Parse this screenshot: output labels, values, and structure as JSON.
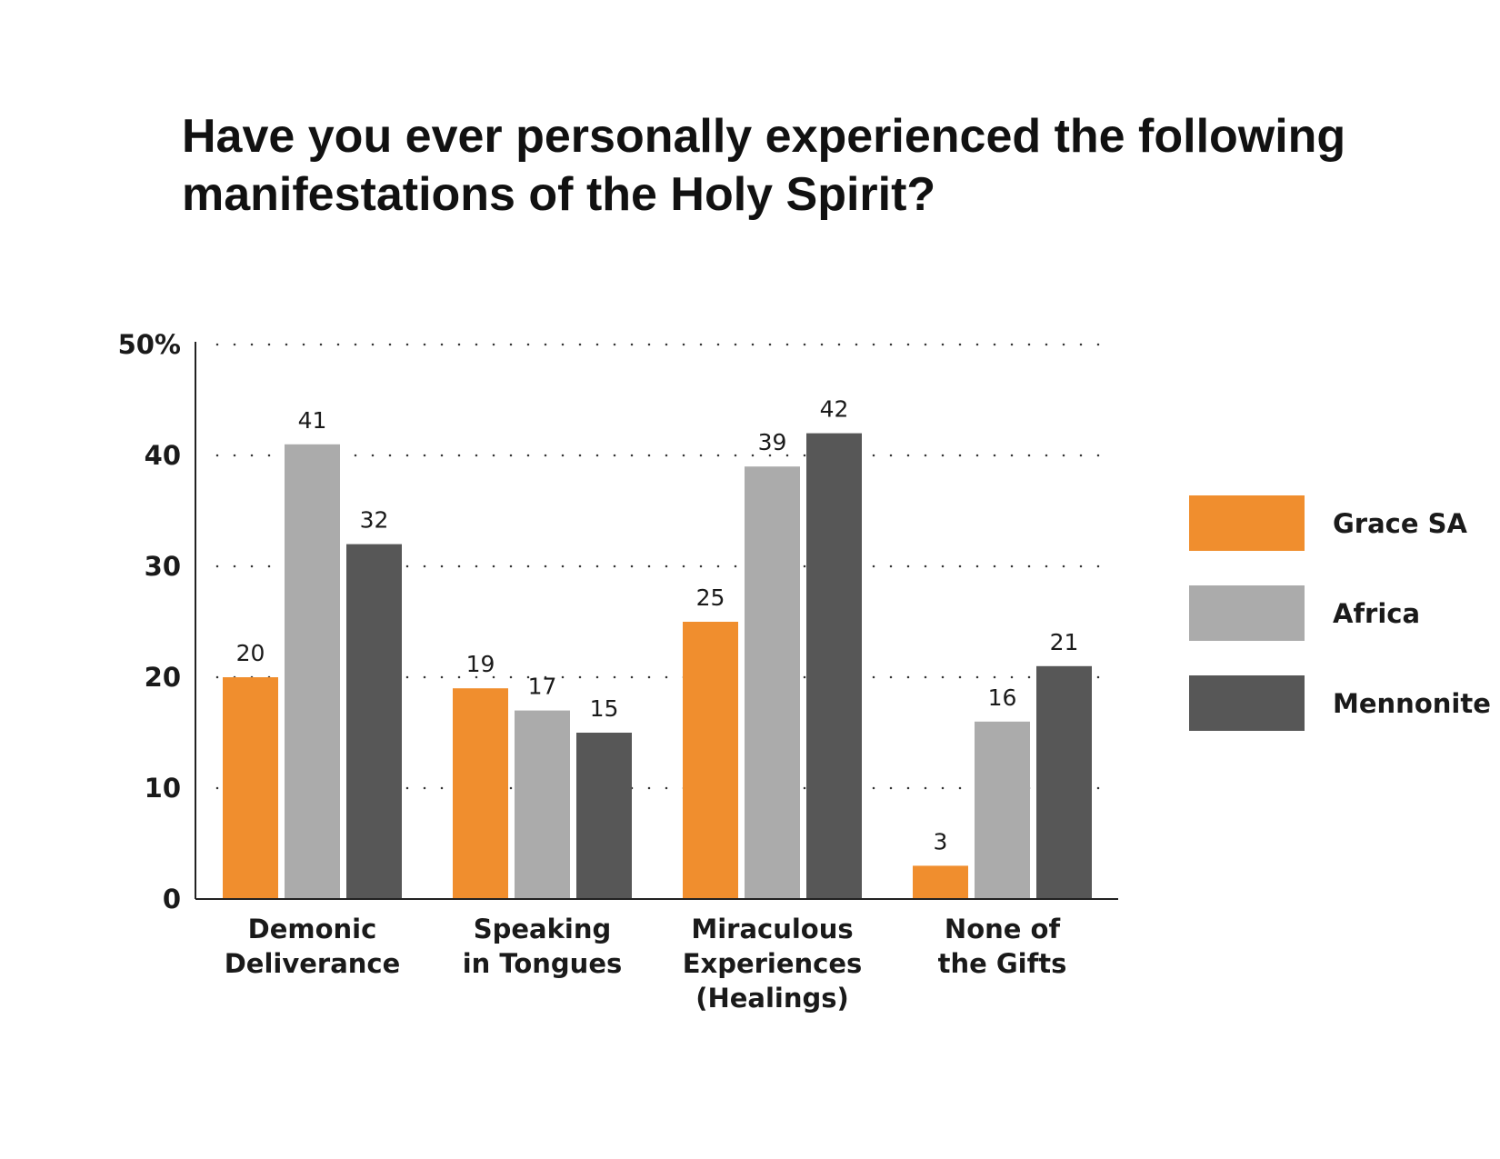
{
  "chart_data": {
    "type": "bar",
    "title_lines": [
      "Have you ever personally experienced the following",
      "manifestations of the Holy Spirit?"
    ],
    "categories": [
      [
        "Demonic",
        "Deliverance"
      ],
      [
        "Speaking",
        "in Tongues"
      ],
      [
        "Miraculous",
        "Experiences",
        "(Healings)"
      ],
      [
        "None of",
        "the Gifts"
      ]
    ],
    "series": [
      {
        "name": "Grace SA",
        "color": "#F08E2E",
        "values": [
          20,
          19,
          25,
          3
        ]
      },
      {
        "name": "Africa",
        "color": "#ABABAB",
        "values": [
          41,
          17,
          39,
          16
        ]
      },
      {
        "name": "Mennonite",
        "color": "#575757",
        "values": [
          32,
          15,
          42,
          21
        ]
      }
    ],
    "y_ticks": [
      {
        "value": 0,
        "label": "0"
      },
      {
        "value": 10,
        "label": "10"
      },
      {
        "value": 20,
        "label": "20"
      },
      {
        "value": 30,
        "label": "30"
      },
      {
        "value": 40,
        "label": "40"
      },
      {
        "value": 50,
        "label": "50%"
      }
    ],
    "ylim": [
      0,
      50
    ],
    "grid": "dotted horizontal",
    "legend_position": "right"
  }
}
